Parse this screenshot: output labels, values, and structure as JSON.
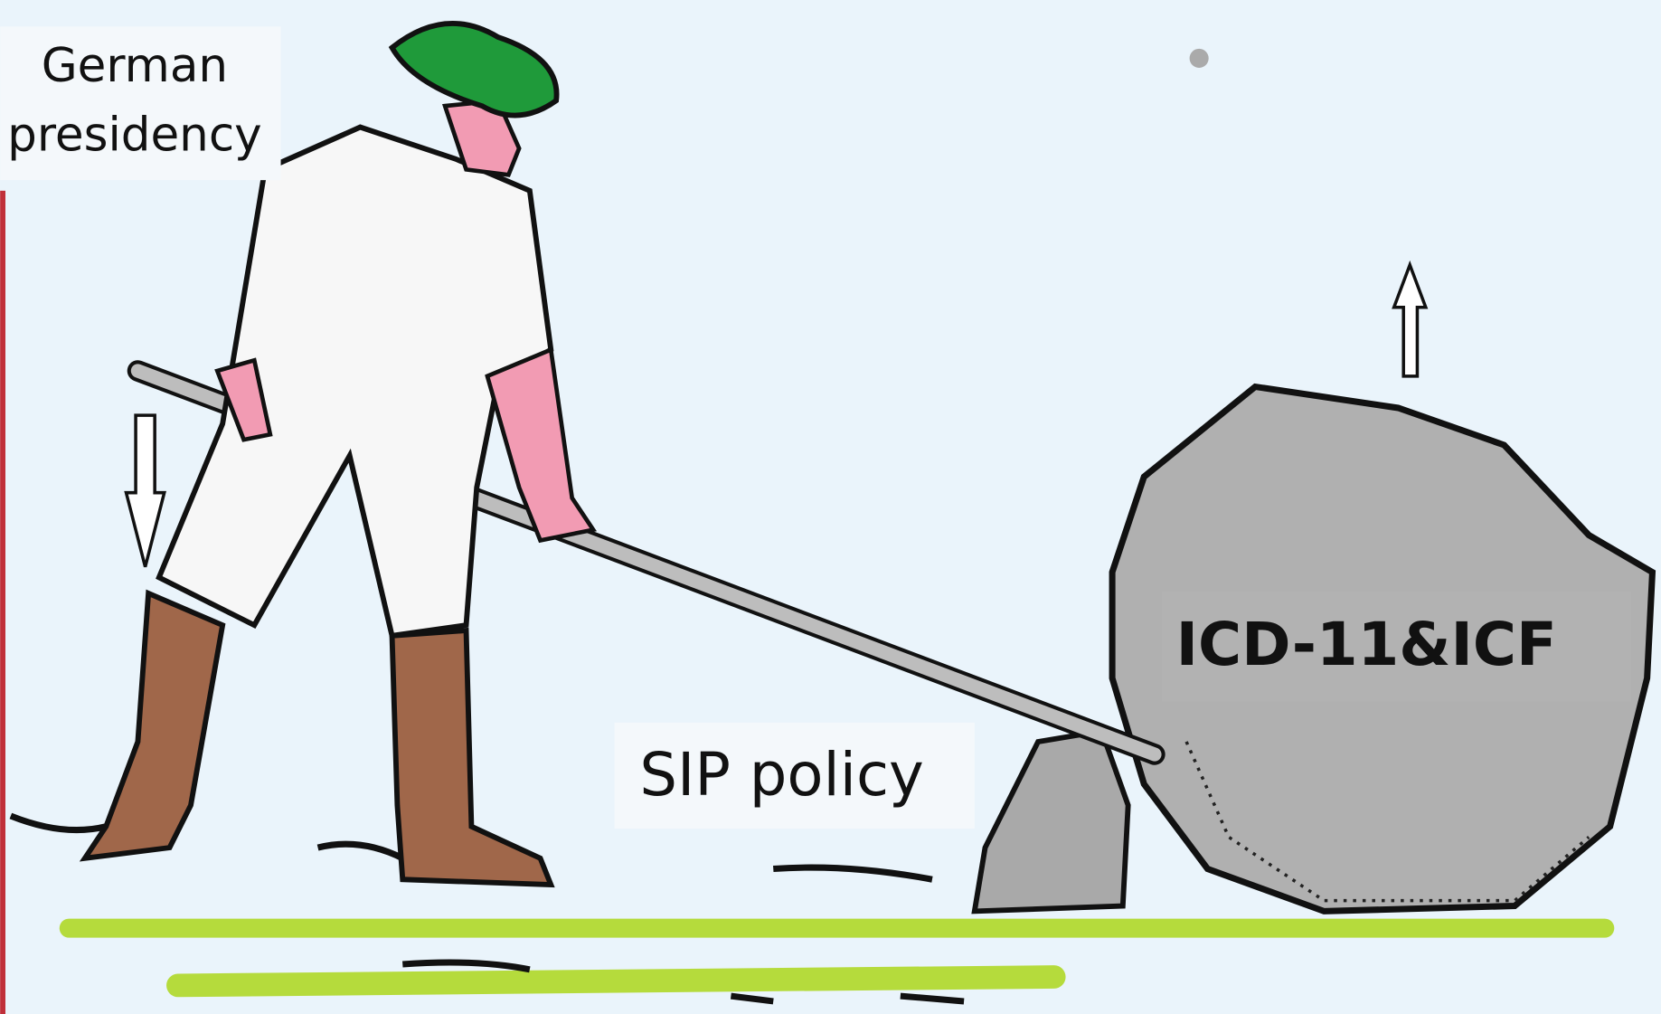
{
  "captions": {
    "actor": [
      "German",
      "presidency"
    ],
    "fulcrum": "SIP policy",
    "load": "ICD-11&ICF"
  }
}
